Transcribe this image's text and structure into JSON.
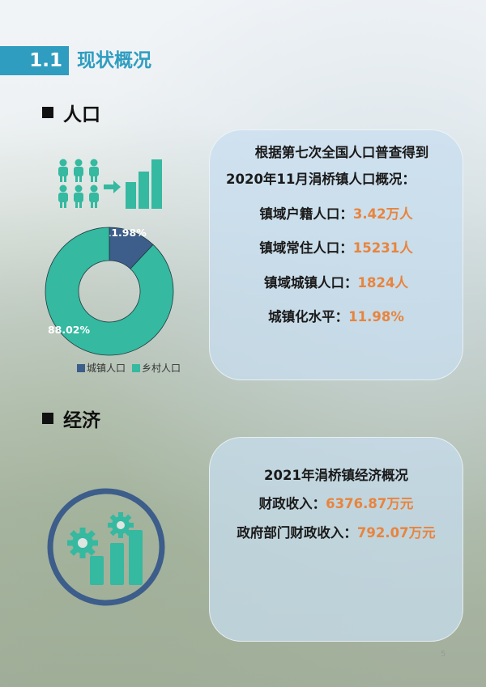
{
  "header": {
    "number": "1.1",
    "title": "现状概况"
  },
  "population": {
    "section_title": "人口",
    "intro_line1": "根据第七次全国人口普查得到",
    "intro_line2": "2020年11月涓桥镇人口概况：",
    "stats": [
      {
        "label": "镇域户籍人口：",
        "value": "3.42万人"
      },
      {
        "label": "镇域常住人口：",
        "value": "15231人"
      },
      {
        "label": "镇域城镇人口：",
        "value": "1824人"
      },
      {
        "label": "城镇化水平：",
        "value": "11.98%"
      }
    ],
    "icons": [
      "people-icon",
      "arrow-right-icon",
      "bar-chart-icon"
    ]
  },
  "chart_data": {
    "type": "pie",
    "style": "donut",
    "categories": [
      "城镇人口",
      "乡村人口"
    ],
    "values": [
      11.98,
      88.02
    ],
    "data_labels": [
      "11.98%",
      "88.02%"
    ],
    "colors": [
      "#3d5d8a",
      "#35b9a0"
    ],
    "legend_position": "bottom"
  },
  "economy": {
    "section_title": "经济",
    "title": "2021年涓桥镇经济概况",
    "stats": [
      {
        "label": "财政收入：",
        "value": "6376.87万元"
      },
      {
        "label": "政府部门财政收入：",
        "value": "792.07万元"
      }
    ],
    "icon": "gear-growth-chart-icon"
  },
  "page_number": "5",
  "colors": {
    "accent": "#2e9dc0",
    "teal": "#35b9a0",
    "navy": "#3d5d8a",
    "value": "#e8843d"
  }
}
